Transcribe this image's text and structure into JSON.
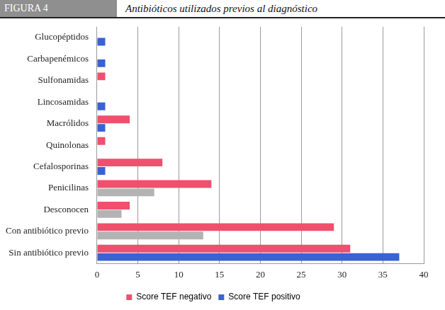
{
  "chart_data": {
    "type": "bar",
    "orientation": "horizontal",
    "figure_label": "FIGURA 4",
    "title": "Antibióticos utilizados previos al diagnóstico",
    "categories": [
      "Glucopéptidos",
      "Carbapenémicos",
      "Sulfonamidas",
      "Lincosamidas",
      "Macrólidos",
      "Quinolonas",
      "Cefalosporinas",
      "Penicilinas",
      "Desconocen",
      "Con antibiótico previo",
      "Sin antibiótico previo"
    ],
    "series": [
      {
        "name": "Score TEF negativo",
        "color": "#f0506e",
        "values": [
          0,
          0,
          1,
          0,
          4,
          1,
          8,
          14,
          4,
          29,
          31
        ]
      },
      {
        "name": "Score TEF positivo",
        "color": "#3a62d4",
        "colors": [
          "#3a62d4",
          "#3a62d4",
          "#3a62d4",
          "#3a62d4",
          "#3a62d4",
          "#3a62d4",
          "#3a62d4",
          "#b3b3b3",
          "#b3b3b3",
          "#b3b3b3",
          "#3a62d4"
        ],
        "values": [
          1,
          1,
          0,
          1,
          1,
          0,
          1,
          7,
          3,
          13,
          37
        ]
      }
    ],
    "xlim": [
      0,
      40
    ],
    "xticks": [
      0,
      5,
      10,
      15,
      20,
      25,
      30,
      35,
      40
    ],
    "grid": true,
    "legend": "bottom"
  }
}
